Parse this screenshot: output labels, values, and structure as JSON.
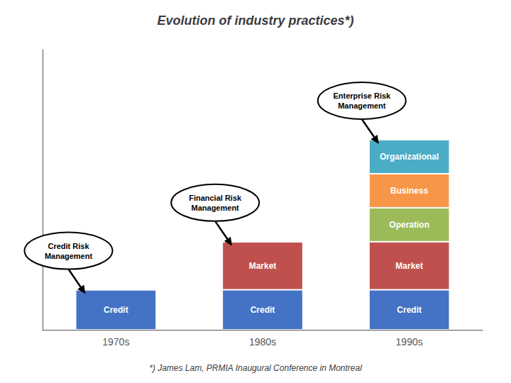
{
  "chart_data": {
    "type": "bar",
    "title": "Evolution of industry practices*)",
    "footer": "*) James Lam, PRMIA Inaugural Conference in Montreal",
    "categories": [
      "1970s",
      "1980s",
      "1990s"
    ],
    "series": [
      {
        "name": "Credit",
        "color": "#4472C4",
        "values": [
          1.0,
          1.0,
          1.0
        ]
      },
      {
        "name": "Market",
        "color": "#C0504D",
        "values": [
          0.0,
          1.2,
          1.2
        ]
      },
      {
        "name": "Operation",
        "color": "#9BBB59",
        "values": [
          0.0,
          0.0,
          0.85
        ]
      },
      {
        "name": "Business",
        "color": "#F79646",
        "values": [
          0.0,
          0.0,
          0.85
        ]
      },
      {
        "name": "Organizational",
        "color": "#4BACC6",
        "values": [
          0.0,
          0.0,
          0.85
        ]
      }
    ],
    "stacked": true,
    "ylim": [
      0,
      7.0
    ],
    "tick_labels": "x",
    "grid": false,
    "annotations": [
      "Credit Risk\nManagement",
      "Financial Risk\nManagement",
      "Enterprise Risk\nManagement"
    ]
  }
}
